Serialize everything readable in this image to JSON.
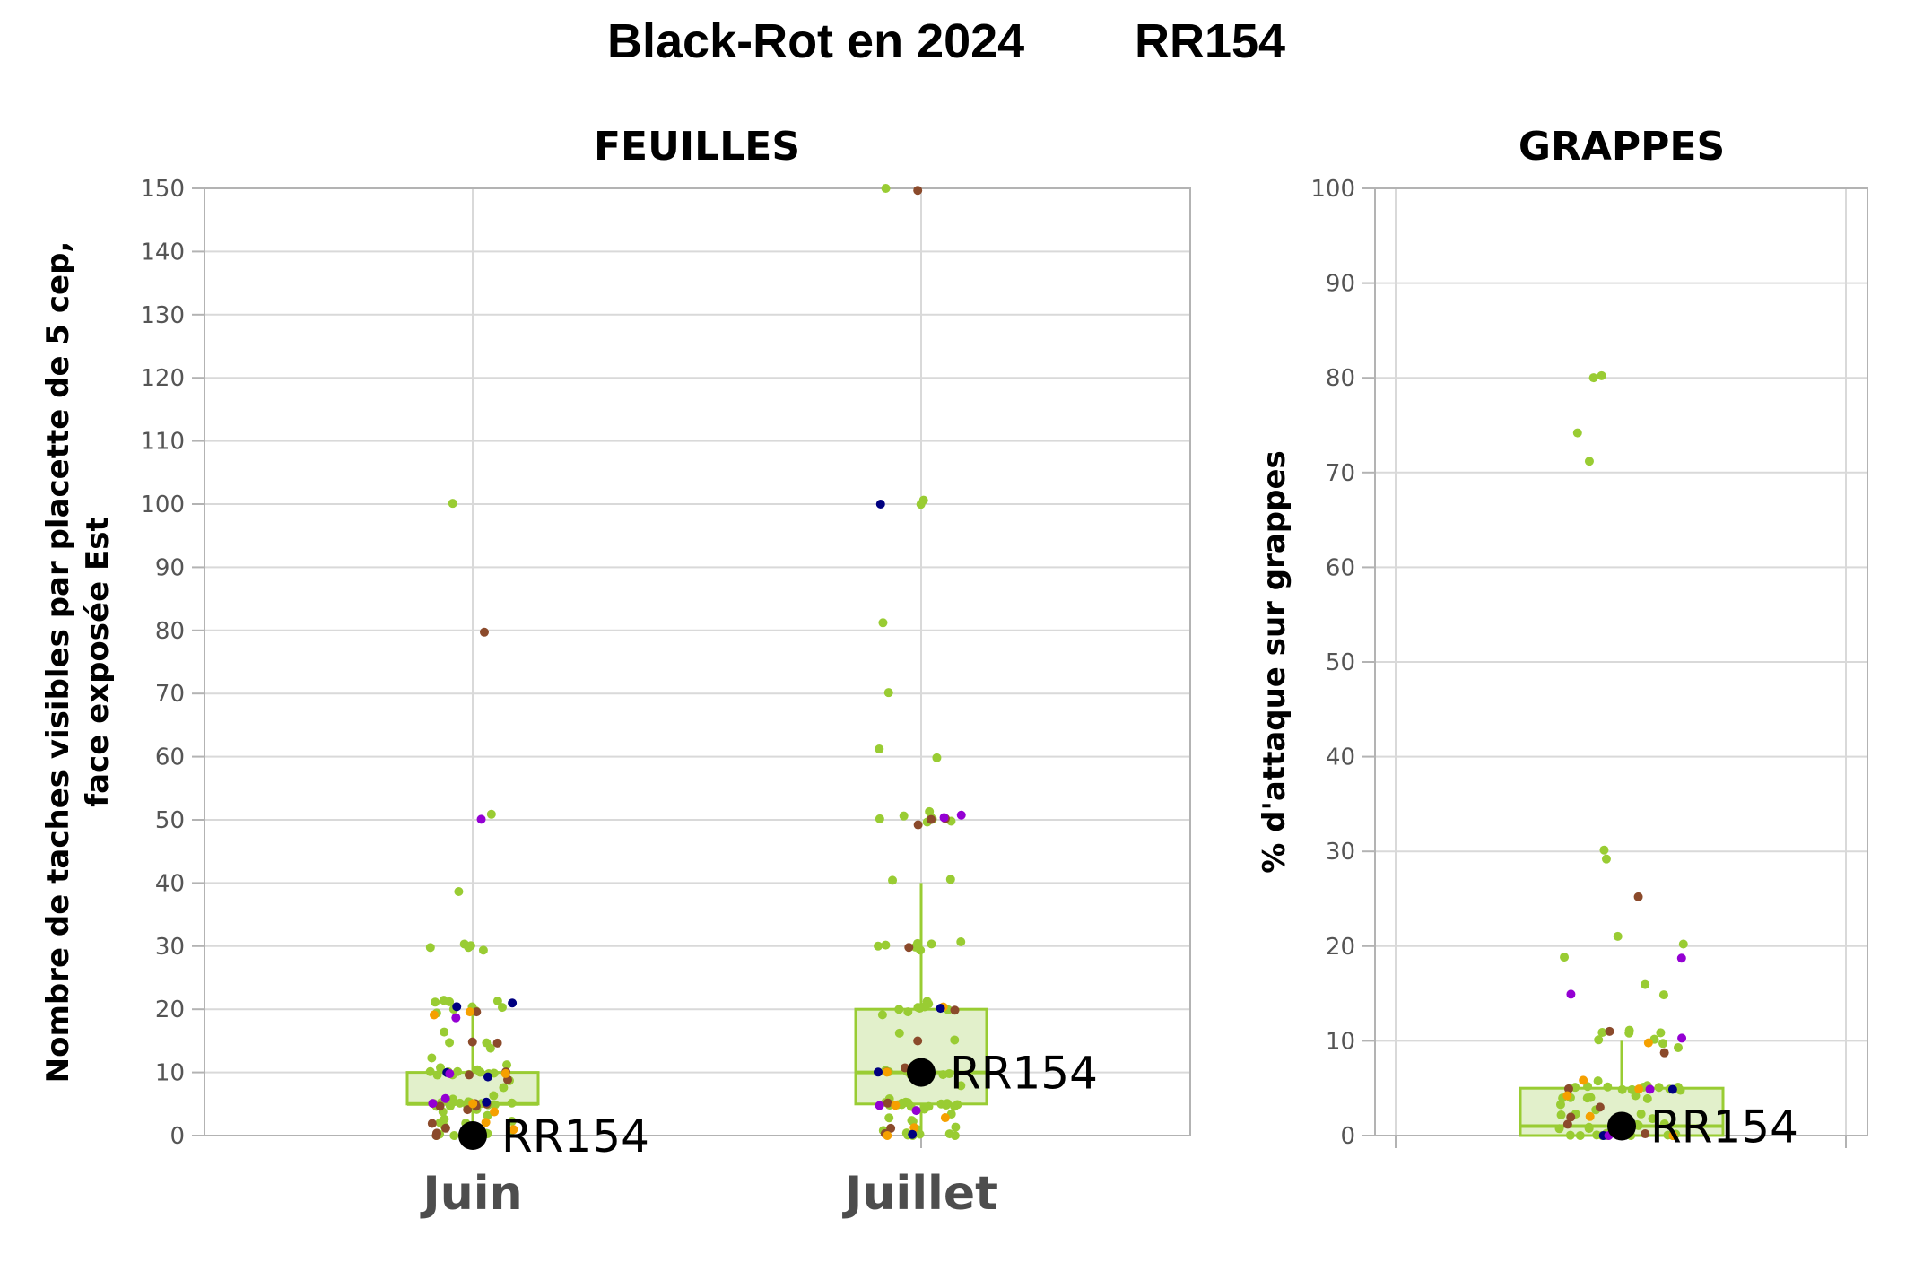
{
  "title": {
    "left": "Black-Rot en 2024",
    "right": "RR154"
  },
  "colors": {
    "grid": "#d9d9d9",
    "frame": "#b3b3b3",
    "box_fill": "#e2f0cb",
    "box_stroke": "#99cc33",
    "green": "#99cc33",
    "brown": "#8b4a2b",
    "orange": "#f5a000",
    "navy": "#000080",
    "purple": "#9400d3",
    "reference": "#000000"
  },
  "chart_data": [
    {
      "type": "box",
      "panel_title": "FEUILLES",
      "ylabel_line1": "Nombre de taches visibles par placette de 5 cep,",
      "ylabel_line2": "face exposée Est",
      "ylim": [
        0,
        150
      ],
      "yticks": [
        0,
        10,
        20,
        30,
        40,
        50,
        60,
        70,
        80,
        90,
        100,
        110,
        120,
        130,
        140,
        150
      ],
      "grid": true,
      "categories": [
        "Juin",
        "Juillet"
      ],
      "boxes": [
        {
          "category": "Juin",
          "q1": 5,
          "median": 5,
          "q3": 10,
          "whisker_low": 0,
          "whisker_high": 20
        },
        {
          "category": "Juillet",
          "q1": 5,
          "median": 10,
          "q3": 20,
          "whisker_low": 0,
          "whisker_high": 40
        }
      ],
      "reference": [
        {
          "category": "Juin",
          "label": "RR154",
          "value": 0
        },
        {
          "category": "Juillet",
          "label": "RR154",
          "value": 10
        }
      ],
      "points": [
        {
          "category": "Juin",
          "color": "green",
          "values": [
            0,
            0,
            0,
            0,
            0,
            0,
            0,
            0,
            0,
            1,
            1,
            1,
            2,
            2,
            2,
            3,
            3,
            4,
            4,
            4,
            5,
            5,
            5,
            5,
            5,
            5,
            5,
            5,
            5,
            5,
            5,
            5,
            5,
            5,
            5,
            6,
            6,
            8,
            9,
            10,
            10,
            10,
            10,
            10,
            10,
            10,
            10,
            10,
            10,
            10,
            11,
            11,
            12,
            14,
            15,
            15,
            16,
            19,
            20,
            20,
            20,
            20,
            21,
            21,
            21,
            21,
            29,
            30,
            30,
            30,
            30,
            39,
            51,
            100
          ]
        },
        {
          "category": "Juin",
          "color": "brown",
          "values": [
            0,
            0,
            1,
            2,
            4,
            5,
            5,
            5,
            5,
            9,
            10,
            10,
            15,
            15,
            20,
            80
          ]
        },
        {
          "category": "Juin",
          "color": "orange",
          "values": [
            0,
            1,
            2,
            4,
            5,
            10,
            19,
            20
          ]
        },
        {
          "category": "Juin",
          "color": "navy",
          "values": [
            5,
            9,
            10,
            20,
            21
          ]
        },
        {
          "category": "Juin",
          "color": "purple",
          "values": [
            5,
            6,
            10,
            19,
            50
          ]
        },
        {
          "category": "Juillet",
          "color": "green",
          "values": [
            0,
            0,
            0,
            0,
            0,
            0,
            0,
            1,
            1,
            1,
            2,
            2,
            3,
            3,
            4,
            5,
            5,
            5,
            5,
            5,
            5,
            5,
            5,
            5,
            5,
            5,
            5,
            5,
            5,
            6,
            8,
            10,
            10,
            10,
            10,
            10,
            10,
            10,
            10,
            10,
            11,
            11,
            15,
            16,
            19,
            20,
            20,
            20,
            20,
            20,
            20,
            21,
            21,
            29,
            30,
            30,
            30,
            30,
            30,
            31,
            40,
            41,
            50,
            50,
            50,
            50,
            50,
            51,
            51,
            60,
            61,
            70,
            81,
            100,
            101,
            150
          ]
        },
        {
          "category": "Juillet",
          "color": "brown",
          "values": [
            0,
            1,
            5,
            10,
            11,
            15,
            20,
            30,
            49,
            50,
            50,
            150
          ]
        },
        {
          "category": "Juillet",
          "color": "orange",
          "values": [
            0,
            1,
            3,
            5,
            10,
            20
          ]
        },
        {
          "category": "Juillet",
          "color": "navy",
          "values": [
            0,
            10,
            20,
            100
          ]
        },
        {
          "category": "Juillet",
          "color": "purple",
          "values": [
            4,
            5,
            11,
            50,
            51
          ]
        }
      ]
    },
    {
      "type": "box",
      "panel_title": "GRAPPES",
      "ylabel": "% d'attaque sur grappes",
      "ylim": [
        0,
        100
      ],
      "yticks": [
        0,
        10,
        20,
        30,
        40,
        50,
        60,
        70,
        80,
        90,
        100
      ],
      "grid": true,
      "categories": [
        ""
      ],
      "boxes": [
        {
          "category": "",
          "q1": 0,
          "median": 1,
          "q3": 5,
          "whisker_low": 0,
          "whisker_high": 10
        }
      ],
      "reference": [
        {
          "category": "",
          "label": "RR154",
          "value": 1
        }
      ],
      "points": [
        {
          "category": "",
          "color": "green",
          "values": [
            0,
            0,
            0,
            0,
            0,
            0,
            0,
            0,
            0,
            0,
            1,
            1,
            1,
            1,
            1,
            1,
            1,
            2,
            2,
            2,
            2,
            3,
            3,
            4,
            4,
            4,
            4,
            4,
            4,
            5,
            5,
            5,
            5,
            5,
            5,
            5,
            5,
            5,
            5,
            5,
            6,
            9,
            10,
            10,
            10,
            11,
            11,
            11,
            11,
            15,
            16,
            19,
            20,
            21,
            29,
            30,
            71,
            74,
            80,
            80
          ]
        },
        {
          "category": "",
          "color": "brown",
          "values": [
            0,
            1,
            2,
            3,
            5,
            9,
            11,
            25
          ]
        },
        {
          "category": "",
          "color": "orange",
          "values": [
            0,
            2,
            4,
            5,
            6,
            10
          ]
        },
        {
          "category": "",
          "color": "navy",
          "values": [
            0,
            1,
            5
          ]
        },
        {
          "category": "",
          "color": "purple",
          "values": [
            0,
            5,
            10,
            15,
            19
          ]
        }
      ]
    }
  ]
}
